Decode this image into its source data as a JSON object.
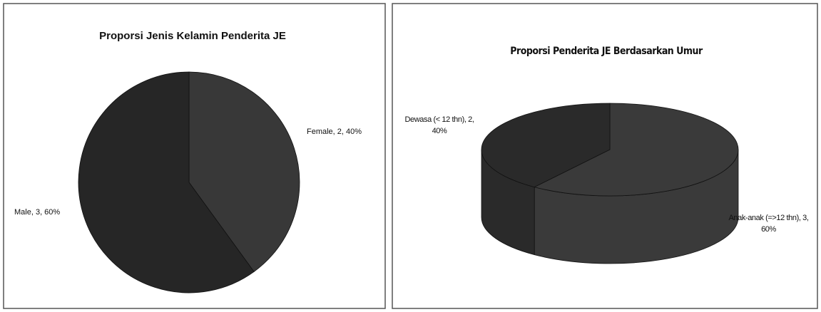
{
  "chart_data": [
    {
      "type": "pie",
      "title": "Proporsi Jenis Kelamin Penderita JE",
      "categories": [
        "Female",
        "Male"
      ],
      "values": [
        2,
        3
      ],
      "value_labels": [
        "Female, 2, 40%",
        "Male, 3, 60%"
      ],
      "colors": [
        "#383838",
        "#262626"
      ]
    },
    {
      "type": "pie",
      "three_d": true,
      "title": "Proporsi Penderita JE Berdasarkan Umur",
      "categories": [
        "Anak-anak (=>12 thn)",
        "Dewasa (< 12 thn)"
      ],
      "values": [
        3,
        2
      ],
      "value_labels": [
        "Anak-anak (=>12 thn), 3, 60%",
        "Dewasa (< 12 thn), 2, 40%"
      ],
      "colors": [
        "#3a3a3a",
        "#2a2a2a"
      ]
    }
  ]
}
